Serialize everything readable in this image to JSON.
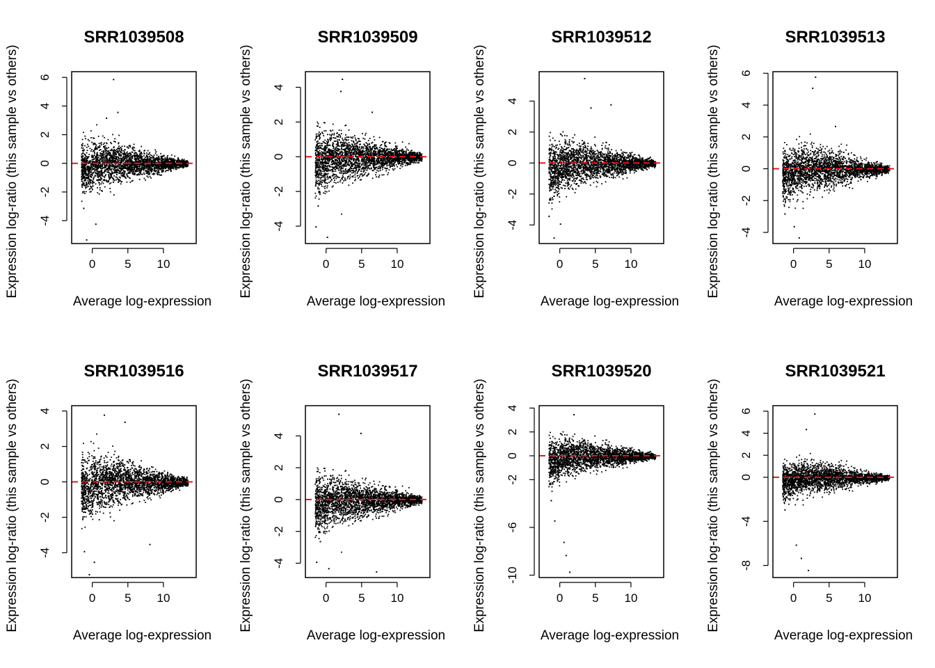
{
  "figure": {
    "xlabel": "Average log-expression",
    "ylabel": "Expression log-ratio (this sample vs others)",
    "reference_line_color": "#e8151b",
    "point_color": "#000000"
  },
  "chart_data": [
    {
      "type": "scatter",
      "title": "SRR1039508",
      "xlabel": "Average log-expression",
      "ylabel": "Expression log-ratio (this sample vs others)",
      "xlim": [
        -2.9,
        14.6
      ],
      "ylim": [
        -5.6,
        6.4
      ],
      "xticks": [
        0,
        5,
        10
      ],
      "yticks": [
        -4,
        -2,
        0,
        2,
        4,
        6
      ],
      "reference_line_y": 0,
      "points": [
        [
          -0.5,
          -0.4
        ],
        [
          0.2,
          0.6
        ],
        [
          0.8,
          -1.1
        ],
        [
          1.5,
          1.2
        ],
        [
          2.3,
          -0.3
        ],
        [
          3.0,
          0.5
        ],
        [
          4.1,
          -0.8
        ],
        [
          5.2,
          0.3
        ],
        [
          6.0,
          -0.2
        ],
        [
          7.4,
          0.1
        ],
        [
          8.5,
          -0.1
        ],
        [
          9.6,
          0.05
        ],
        [
          11.0,
          0.0
        ],
        [
          12.5,
          -0.1
        ],
        [
          2.9,
          5.9
        ],
        [
          3.5,
          3.6
        ],
        [
          -1.3,
          -3.1
        ],
        [
          0.4,
          -4.2
        ],
        [
          -0.9,
          -5.3
        ],
        [
          1.9,
          3.2
        ]
      ],
      "grid": false
    },
    {
      "type": "scatter",
      "title": "SRR1039509",
      "xlabel": "Average log-expression",
      "ylabel": "Expression log-ratio (this sample vs others)",
      "xlim": [
        -2.9,
        14.6
      ],
      "ylim": [
        -5.0,
        4.9
      ],
      "xticks": [
        0,
        5,
        10
      ],
      "yticks": [
        -4,
        -2,
        0,
        2,
        4
      ],
      "reference_line_y": 0,
      "points": [
        [
          -0.6,
          -0.5
        ],
        [
          0.3,
          0.7
        ],
        [
          1.0,
          -1.0
        ],
        [
          1.8,
          1.3
        ],
        [
          2.6,
          -0.4
        ],
        [
          3.4,
          0.6
        ],
        [
          4.5,
          -0.7
        ],
        [
          5.6,
          0.4
        ],
        [
          6.7,
          -0.2
        ],
        [
          7.8,
          0.2
        ],
        [
          9.0,
          -0.1
        ],
        [
          10.2,
          0.1
        ],
        [
          11.6,
          0.0
        ],
        [
          12.8,
          -0.3
        ],
        [
          2.2,
          4.5
        ],
        [
          2.0,
          3.8
        ],
        [
          -1.5,
          -4.0
        ],
        [
          0.1,
          -4.6
        ],
        [
          -1.2,
          -2.8
        ],
        [
          6.4,
          2.6
        ]
      ],
      "grid": false
    },
    {
      "type": "scatter",
      "title": "SRR1039512",
      "xlabel": "Average log-expression",
      "ylabel": "Expression log-ratio (this sample vs others)",
      "xlim": [
        -2.9,
        14.6
      ],
      "ylim": [
        -5.2,
        5.9
      ],
      "xticks": [
        0,
        5,
        10
      ],
      "yticks": [
        -4,
        -2,
        0,
        2,
        4
      ],
      "reference_line_y": 0,
      "points": [
        [
          -0.5,
          -0.6
        ],
        [
          0.4,
          0.8
        ],
        [
          1.1,
          -1.2
        ],
        [
          1.9,
          1.4
        ],
        [
          2.7,
          -0.3
        ],
        [
          3.6,
          0.5
        ],
        [
          4.6,
          -0.9
        ],
        [
          5.5,
          0.4
        ],
        [
          6.4,
          -0.2
        ],
        [
          7.6,
          0.1
        ],
        [
          8.8,
          -0.1
        ],
        [
          10.0,
          0.1
        ],
        [
          11.5,
          0.0
        ],
        [
          13.0,
          0.2
        ],
        [
          3.4,
          5.5
        ],
        [
          4.3,
          3.6
        ],
        [
          -1.6,
          -3.4
        ],
        [
          0.0,
          -3.9
        ],
        [
          -0.9,
          -4.8
        ],
        [
          7.1,
          3.8
        ]
      ],
      "grid": false
    },
    {
      "type": "scatter",
      "title": "SRR1039513",
      "xlabel": "Average log-expression",
      "ylabel": "Expression log-ratio (this sample vs others)",
      "xlim": [
        -2.9,
        14.6
      ],
      "ylim": [
        -4.7,
        6.1
      ],
      "xticks": [
        0,
        5,
        10
      ],
      "yticks": [
        -4,
        -2,
        0,
        2,
        4,
        6
      ],
      "reference_line_y": 0,
      "points": [
        [
          -0.4,
          -0.5
        ],
        [
          0.3,
          0.7
        ],
        [
          1.0,
          -1.1
        ],
        [
          1.7,
          1.3
        ],
        [
          2.5,
          -0.3
        ],
        [
          3.3,
          0.6
        ],
        [
          4.4,
          -0.8
        ],
        [
          5.4,
          0.3
        ],
        [
          6.3,
          -0.2
        ],
        [
          7.5,
          0.2
        ],
        [
          8.7,
          -0.1
        ],
        [
          10.0,
          0.1
        ],
        [
          11.4,
          0.0
        ],
        [
          12.8,
          0.1
        ],
        [
          3.0,
          5.8
        ],
        [
          2.6,
          5.1
        ],
        [
          -1.3,
          -2.8
        ],
        [
          0.0,
          -3.6
        ],
        [
          0.7,
          -4.3
        ],
        [
          5.8,
          2.7
        ]
      ],
      "grid": false
    },
    {
      "type": "scatter",
      "title": "SRR1039516",
      "xlabel": "Average log-expression",
      "ylabel": "Expression log-ratio (this sample vs others)",
      "xlim": [
        -2.9,
        14.6
      ],
      "ylim": [
        -5.4,
        4.3
      ],
      "xticks": [
        0,
        5,
        10
      ],
      "yticks": [
        -4,
        -2,
        0,
        2,
        4
      ],
      "reference_line_y": 0,
      "points": [
        [
          -0.5,
          -0.5
        ],
        [
          0.3,
          0.8
        ],
        [
          1.0,
          -1.2
        ],
        [
          1.8,
          1.5
        ],
        [
          2.6,
          -0.4
        ],
        [
          3.4,
          0.6
        ],
        [
          4.4,
          -0.9
        ],
        [
          5.4,
          0.4
        ],
        [
          6.4,
          -0.2
        ],
        [
          7.6,
          0.2
        ],
        [
          8.8,
          -0.1
        ],
        [
          10.2,
          0.1
        ],
        [
          11.7,
          0.0
        ],
        [
          13.2,
          0.3
        ],
        [
          1.6,
          3.8
        ],
        [
          4.5,
          3.4
        ],
        [
          -1.2,
          -3.9
        ],
        [
          -0.5,
          -5.2
        ],
        [
          0.2,
          -4.5
        ],
        [
          8.0,
          -3.5
        ]
      ],
      "grid": false
    },
    {
      "type": "scatter",
      "title": "SRR1039517",
      "xlabel": "Average log-expression",
      "ylabel": "Expression log-ratio (this sample vs others)",
      "xlim": [
        -2.9,
        14.6
      ],
      "ylim": [
        -4.9,
        5.9
      ],
      "xticks": [
        0,
        5,
        10
      ],
      "yticks": [
        -4,
        -2,
        0,
        2,
        4
      ],
      "reference_line_y": 0,
      "points": [
        [
          -0.5,
          -0.7
        ],
        [
          0.3,
          0.5
        ],
        [
          1.0,
          -1.3
        ],
        [
          1.8,
          1.1
        ],
        [
          2.6,
          -0.6
        ],
        [
          3.4,
          0.4
        ],
        [
          4.4,
          -0.9
        ],
        [
          5.4,
          0.3
        ],
        [
          6.4,
          -0.3
        ],
        [
          7.6,
          0.1
        ],
        [
          8.8,
          -0.1
        ],
        [
          10.0,
          0.1
        ],
        [
          11.6,
          0.0
        ],
        [
          13.0,
          0.2
        ],
        [
          1.7,
          5.4
        ],
        [
          4.8,
          4.2
        ],
        [
          -1.4,
          -3.9
        ],
        [
          0.3,
          -4.3
        ],
        [
          -0.9,
          -2.6
        ],
        [
          7.0,
          -4.5
        ]
      ],
      "grid": false
    },
    {
      "type": "scatter",
      "title": "SRR1039520",
      "xlabel": "Average log-expression",
      "ylabel": "Expression log-ratio (this sample vs others)",
      "xlim": [
        -2.9,
        14.6
      ],
      "ylim": [
        -10.2,
        4.2
      ],
      "xticks": [
        0,
        5,
        10
      ],
      "yticks": [
        -10,
        -6,
        -2,
        0,
        2,
        4
      ],
      "reference_line_y": 0,
      "points": [
        [
          -0.5,
          -0.5
        ],
        [
          0.3,
          0.7
        ],
        [
          1.0,
          -1.1
        ],
        [
          1.8,
          1.3
        ],
        [
          2.6,
          -0.3
        ],
        [
          3.4,
          0.6
        ],
        [
          4.4,
          -0.8
        ],
        [
          5.4,
          0.4
        ],
        [
          6.4,
          -0.2
        ],
        [
          7.6,
          0.2
        ],
        [
          8.8,
          -0.1
        ],
        [
          10.0,
          0.1
        ],
        [
          11.5,
          0.0
        ],
        [
          13.0,
          0.1
        ],
        [
          1.9,
          3.5
        ],
        [
          -0.8,
          -5.4
        ],
        [
          0.5,
          -7.2
        ],
        [
          1.3,
          -9.7
        ],
        [
          0.8,
          -8.3
        ],
        [
          -1.3,
          -3.7
        ]
      ],
      "grid": false
    },
    {
      "type": "scatter",
      "title": "SRR1039521",
      "xlabel": "Average log-expression",
      "ylabel": "Expression log-ratio (this sample vs others)",
      "xlim": [
        -2.9,
        14.6
      ],
      "ylim": [
        -9.1,
        6.5
      ],
      "xticks": [
        0,
        5,
        10
      ],
      "yticks": [
        -8,
        -4,
        0,
        2,
        4,
        6
      ],
      "reference_line_y": 0,
      "points": [
        [
          -0.5,
          -0.5
        ],
        [
          0.3,
          0.7
        ],
        [
          1.0,
          -1.1
        ],
        [
          1.8,
          1.3
        ],
        [
          2.6,
          -0.3
        ],
        [
          3.4,
          0.6
        ],
        [
          4.4,
          -0.8
        ],
        [
          5.4,
          0.4
        ],
        [
          6.4,
          -0.2
        ],
        [
          7.6,
          0.2
        ],
        [
          8.8,
          -0.1
        ],
        [
          10.0,
          0.1
        ],
        [
          11.5,
          0.0
        ],
        [
          12.8,
          0.1
        ],
        [
          2.9,
          5.8
        ],
        [
          1.7,
          4.4
        ],
        [
          -1.3,
          -2.9
        ],
        [
          0.3,
          -6.1
        ],
        [
          1.0,
          -7.3
        ],
        [
          2.0,
          -8.4
        ]
      ],
      "grid": false
    }
  ]
}
